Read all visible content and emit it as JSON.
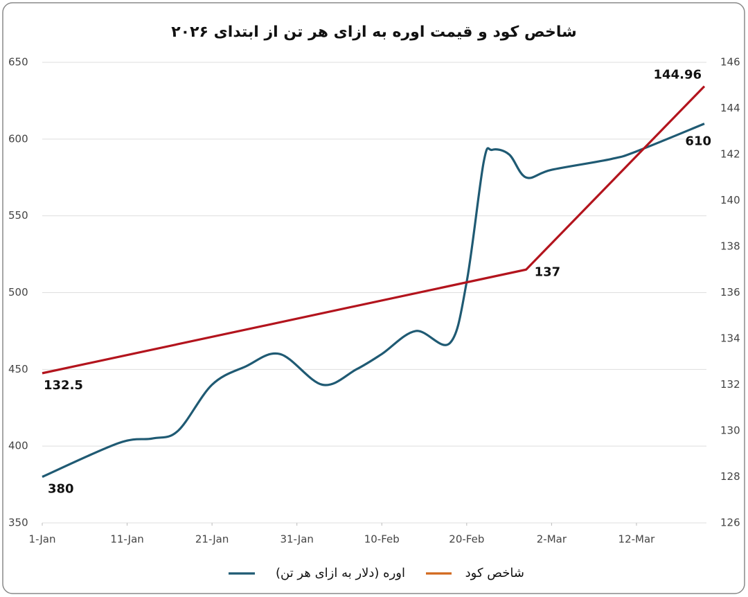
{
  "chart_data": {
    "type": "line",
    "title": "شاخص کود و قیمت اوره به ازای هر تن از ابتدای ۲۰۲۶",
    "xlim": [
      "1-Jan",
      "20-Mar"
    ],
    "xticks": [
      "1-Jan",
      "11-Jan",
      "21-Jan",
      "31-Jan",
      "10-Feb",
      "20-Feb",
      "2-Mar",
      "12-Mar"
    ],
    "ylim": [
      350,
      650
    ],
    "yticks": [
      350,
      400,
      450,
      500,
      550,
      600,
      650
    ],
    "y2lim": [
      126,
      146
    ],
    "y2ticks": [
      126,
      128,
      130,
      132,
      134,
      136,
      138,
      140,
      142,
      144,
      146
    ],
    "grid": true,
    "legend": "bottom",
    "series": [
      {
        "name": "اوره (دلار به ازای هر تن)",
        "color": "#1f5a73",
        "smooth": true,
        "x": [
          "1-Jan",
          "10-Jan",
          "14-Jan",
          "17-Jan",
          "21-Jan",
          "25-Jan",
          "29-Jan",
          "3-Feb",
          "7-Feb",
          "10-Feb",
          "14-Feb",
          "18-Feb",
          "20-Feb",
          "22-Feb",
          "23-Feb",
          "25-Feb",
          "27-Feb",
          "2-Mar",
          "9-Mar",
          "12-Mar",
          "20-Mar"
        ],
        "values": [
          380,
          402,
          405,
          410,
          440,
          452,
          460,
          440,
          450,
          460,
          475,
          467,
          507,
          585,
          593,
          590,
          575,
          580,
          587,
          592,
          610
        ],
        "value_labels": [
          "380",
          null,
          null,
          null,
          null,
          null,
          null,
          null,
          null,
          null,
          null,
          null,
          null,
          null,
          null,
          null,
          null,
          null,
          null,
          null,
          "610"
        ]
      },
      {
        "name": "شاخص کود",
        "color": "#b3141d",
        "legend_color": "#d2691e",
        "smooth": false,
        "axis": "y2",
        "x": [
          "1-Jan",
          "27-Feb",
          "20-Mar"
        ],
        "values": [
          132.5,
          137,
          144.96
        ],
        "value_labels": [
          "132.5",
          "137",
          "144.96"
        ]
      }
    ]
  }
}
